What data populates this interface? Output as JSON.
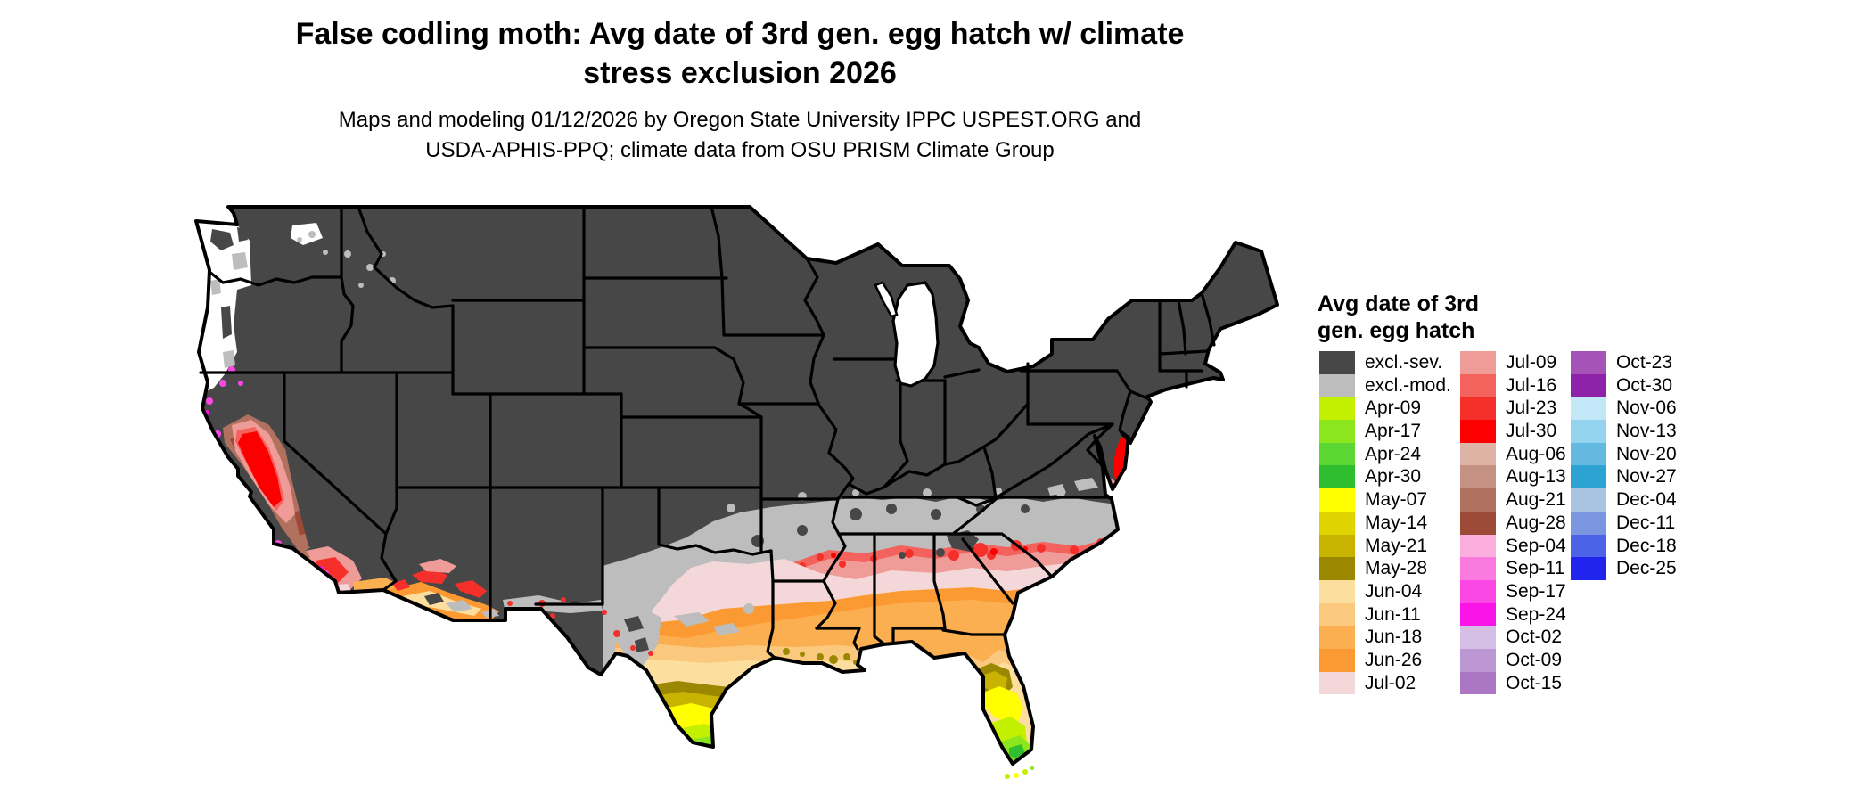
{
  "title": {
    "line1": "False codling moth: Avg date of 3rd gen. egg hatch w/ climate",
    "line2": "stress exclusion 2026"
  },
  "subtitle": {
    "line1": "Maps and modeling 01/12/2026 by Oregon State University IPPC USPEST.ORG and",
    "line2": "USDA-APHIS-PPQ; climate data from OSU PRISM Climate Group"
  },
  "legend": {
    "title_line1": "Avg date of 3rd",
    "title_line2": "gen. egg hatch",
    "columns": [
      [
        {
          "label": "excl.-sev.",
          "color": "#474747"
        },
        {
          "label": "excl.-mod.",
          "color": "#bdbdbd"
        },
        {
          "label": "Apr-09",
          "color": "#c2f000"
        },
        {
          "label": "Apr-17",
          "color": "#8ce61e"
        },
        {
          "label": "Apr-24",
          "color": "#5cd632"
        },
        {
          "label": "Apr-30",
          "color": "#2fbe2f"
        },
        {
          "label": "May-07",
          "color": "#ffff00"
        },
        {
          "label": "May-14",
          "color": "#e0d400"
        },
        {
          "label": "May-21",
          "color": "#c8b400"
        },
        {
          "label": "May-28",
          "color": "#9c8800"
        },
        {
          "label": "Jun-04",
          "color": "#fcdf9f"
        },
        {
          "label": "Jun-11",
          "color": "#fbc97d"
        },
        {
          "label": "Jun-18",
          "color": "#fcaf50"
        },
        {
          "label": "Jun-26",
          "color": "#fb9a32"
        },
        {
          "label": "Jul-02",
          "color": "#f4d7d9"
        }
      ],
      [
        {
          "label": "Jul-09",
          "color": "#ef9b98"
        },
        {
          "label": "Jul-16",
          "color": "#f4625d"
        },
        {
          "label": "Jul-23",
          "color": "#f52f2a"
        },
        {
          "label": "Jul-30",
          "color": "#fc0000"
        },
        {
          "label": "Aug-06",
          "color": "#ddb3a5"
        },
        {
          "label": "Aug-13",
          "color": "#c59183"
        },
        {
          "label": "Aug-21",
          "color": "#b0715f"
        },
        {
          "label": "Aug-28",
          "color": "#9c4a37"
        },
        {
          "label": "Sep-04",
          "color": "#fcaede"
        },
        {
          "label": "Sep-11",
          "color": "#fb7ae0"
        },
        {
          "label": "Sep-17",
          "color": "#fb47e3"
        },
        {
          "label": "Sep-24",
          "color": "#fb14e7"
        },
        {
          "label": "Oct-02",
          "color": "#d6bfe4"
        },
        {
          "label": "Oct-09",
          "color": "#bd97d4"
        },
        {
          "label": "Oct-15",
          "color": "#ab77c5"
        }
      ],
      [
        {
          "label": "Oct-23",
          "color": "#a653b8"
        },
        {
          "label": "Oct-30",
          "color": "#8e22a8"
        },
        {
          "label": "Nov-06",
          "color": "#c2e8f7"
        },
        {
          "label": "Nov-13",
          "color": "#94d3ee"
        },
        {
          "label": "Nov-20",
          "color": "#64b9e0"
        },
        {
          "label": "Nov-27",
          "color": "#2da3d4"
        },
        {
          "label": "Dec-04",
          "color": "#a9c4e1"
        },
        {
          "label": "Dec-11",
          "color": "#7b96e0"
        },
        {
          "label": "Dec-18",
          "color": "#4c63e8"
        },
        {
          "label": "Dec-25",
          "color": "#2024ec"
        }
      ]
    ]
  }
}
